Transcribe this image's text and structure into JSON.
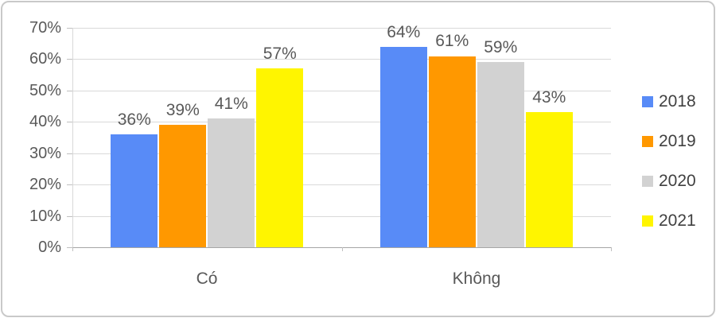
{
  "chart_data": {
    "type": "bar",
    "title": "",
    "xlabel": "",
    "ylabel": "",
    "categories": [
      "Có",
      "Không"
    ],
    "series": [
      {
        "name": "2018",
        "color": "#588bf7",
        "values": [
          36,
          64
        ]
      },
      {
        "name": "2019",
        "color": "#ff9800",
        "values": [
          39,
          61
        ]
      },
      {
        "name": "2020",
        "color": "#d2d2d2",
        "values": [
          41,
          59
        ]
      },
      {
        "name": "2021",
        "color": "#fff500",
        "values": [
          57,
          43
        ]
      }
    ],
    "value_suffix": "%",
    "data_labels": [
      [
        "36%",
        "39%",
        "41%",
        "57%"
      ],
      [
        "64%",
        "61%",
        "59%",
        "43%"
      ]
    ],
    "ylim": [
      0,
      70
    ],
    "ytick_step": 10,
    "ytick_labels": [
      "0%",
      "10%",
      "20%",
      "30%",
      "40%",
      "50%",
      "60%",
      "70%"
    ],
    "grid": true,
    "legend_position": "right",
    "colors": {
      "grid": "#d9d9d9",
      "axis": "#a6a6a6",
      "tick": "#bfbfbf",
      "text": "#595959",
      "legend_text": "#404040",
      "card_border": "#c9c9c9"
    }
  }
}
